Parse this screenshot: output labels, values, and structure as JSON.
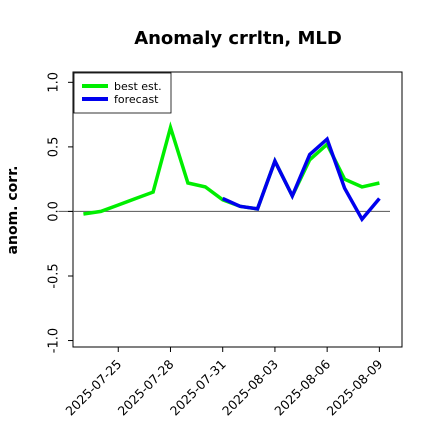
{
  "chart_data": {
    "type": "line",
    "title": "Anomaly crrltn, MLD",
    "ylabel": "anom. corr.",
    "xlabel": "",
    "ylim": [
      -1.05,
      1.08
    ],
    "yticks": [
      "-1.0",
      "-0.5",
      "0.0",
      "0.5",
      "1.0"
    ],
    "ytick_values": [
      -1.0,
      -0.5,
      0.0,
      0.5,
      1.0
    ],
    "xticks": [
      "2025-07-25",
      "2025-07-28",
      "2025-07-31",
      "2025-08-03",
      "2025-08-06",
      "2025-08-09"
    ],
    "xtick_index": [
      2,
      5,
      8,
      11,
      14,
      17
    ],
    "highlight_tick": "2025-07-31",
    "highlight_color": "#2e8b57",
    "reference_line": 0.0,
    "legend_position": "top-left",
    "grid": false,
    "series": [
      {
        "name": "best est.",
        "color": "#00ee00",
        "x_index": [
          0,
          1,
          2,
          3,
          4,
          5,
          6,
          7,
          8,
          9,
          10,
          11,
          12,
          13,
          14,
          15,
          16,
          17
        ],
        "values": [
          -0.02,
          0.0,
          0.05,
          0.1,
          0.15,
          0.65,
          0.22,
          0.19,
          0.09,
          0.04,
          0.02,
          0.39,
          0.12,
          0.4,
          0.52,
          0.25,
          0.19,
          0.22
        ]
      },
      {
        "name": "forecast",
        "color": "#0000ee",
        "x_index": [
          8,
          9,
          10,
          11,
          12,
          13,
          14,
          15,
          16,
          17
        ],
        "values": [
          0.1,
          0.04,
          0.02,
          0.39,
          0.12,
          0.44,
          0.56,
          0.18,
          -0.06,
          0.1
        ]
      }
    ]
  }
}
